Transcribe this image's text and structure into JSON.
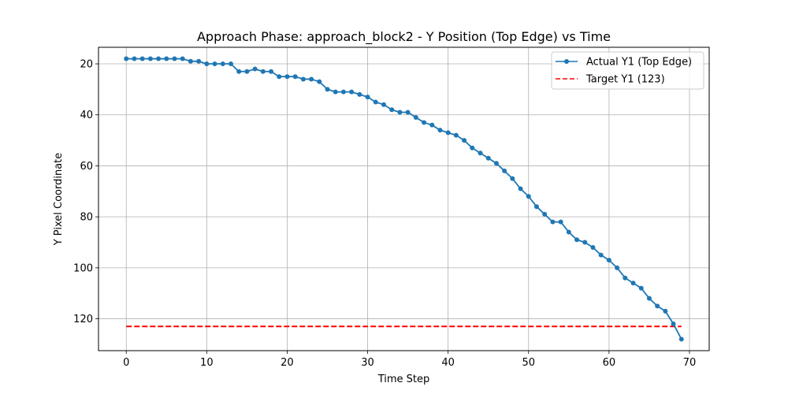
{
  "chart_data": {
    "type": "line",
    "title": "Approach Phase: approach_block2 - Y Position (Top Edge) vs Time",
    "xlabel": "Time Step",
    "ylabel": "Y Pixel Coordinate",
    "xlim": [
      -3.45,
      72.45
    ],
    "ylim": [
      13.5,
      132.5
    ],
    "y_inverted": true,
    "grid": true,
    "legend_position": "top-right",
    "x_ticks": [
      0,
      10,
      20,
      30,
      40,
      50,
      60,
      70
    ],
    "y_ticks": [
      20,
      40,
      60,
      80,
      100,
      120
    ],
    "series": [
      {
        "name": "Actual Y1 (Top Edge)",
        "style": "solid-line-with-circle-markers",
        "color": "#1f77b4",
        "x": [
          0,
          1,
          2,
          3,
          4,
          5,
          6,
          7,
          8,
          9,
          10,
          11,
          12,
          13,
          14,
          15,
          16,
          17,
          18,
          19,
          20,
          21,
          22,
          23,
          24,
          25,
          26,
          27,
          28,
          29,
          30,
          31,
          32,
          33,
          34,
          35,
          36,
          37,
          38,
          39,
          40,
          41,
          42,
          43,
          44,
          45,
          46,
          47,
          48,
          49,
          50,
          51,
          52,
          53,
          54,
          55,
          56,
          57,
          58,
          59,
          60,
          61,
          62,
          63,
          64,
          65,
          66,
          67,
          68,
          69
        ],
        "y": [
          18,
          18,
          18,
          18,
          18,
          18,
          18,
          18,
          19,
          19,
          20,
          20,
          20,
          20,
          23,
          23,
          22,
          23,
          23,
          25,
          25,
          25,
          26,
          26,
          27,
          30,
          31,
          31,
          31,
          32,
          33,
          35,
          36,
          38,
          39,
          39,
          41,
          43,
          44,
          46,
          47,
          48,
          50,
          53,
          55,
          57,
          59,
          62,
          65,
          69,
          72,
          76,
          79,
          82,
          82,
          86,
          89,
          90,
          92,
          95,
          97,
          100,
          104,
          106,
          108,
          112,
          115,
          117,
          122,
          128
        ]
      },
      {
        "name": "Target Y1 (123)",
        "style": "dashed-line",
        "color": "#ff0000",
        "x": [
          0,
          69
        ],
        "y": [
          123,
          123
        ]
      }
    ]
  }
}
